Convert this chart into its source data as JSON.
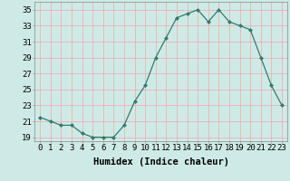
{
  "x": [
    0,
    1,
    2,
    3,
    4,
    5,
    6,
    7,
    8,
    9,
    10,
    11,
    12,
    13,
    14,
    15,
    16,
    17,
    18,
    19,
    20,
    21,
    22,
    23
  ],
  "y": [
    21.5,
    21.0,
    20.5,
    20.5,
    19.5,
    19.0,
    19.0,
    19.0,
    20.5,
    23.5,
    25.5,
    29.0,
    31.5,
    34.0,
    34.5,
    35.0,
    33.5,
    35.0,
    33.5,
    33.0,
    32.5,
    29.0,
    25.5,
    23.0
  ],
  "line_color": "#2e7d6e",
  "marker": "D",
  "marker_size": 2.0,
  "bg_color": "#ceeae7",
  "grid_color": "#f0b0b0",
  "xlabel": "Humidex (Indice chaleur)",
  "xlim": [
    -0.5,
    23.5
  ],
  "ylim": [
    18.5,
    36
  ],
  "yticks": [
    19,
    21,
    23,
    25,
    27,
    29,
    31,
    33,
    35
  ],
  "xticks": [
    0,
    1,
    2,
    3,
    4,
    5,
    6,
    7,
    8,
    9,
    10,
    11,
    12,
    13,
    14,
    15,
    16,
    17,
    18,
    19,
    20,
    21,
    22,
    23
  ],
  "tick_fontsize": 6.5,
  "label_fontsize": 7.5
}
